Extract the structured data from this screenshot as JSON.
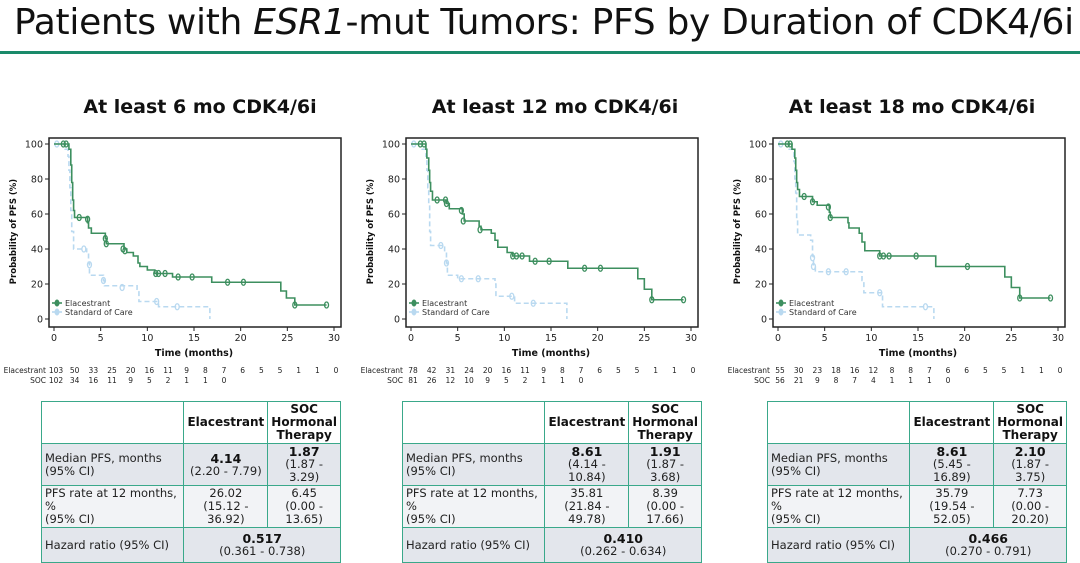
{
  "slide": {
    "title_pre": "Patients with ",
    "title_italic": "ESR1",
    "title_post": "-mut Tumors: PFS by Duration of CDK4/6i",
    "rule_color": "#1a8a6a"
  },
  "chart_data": [
    {
      "type": "line",
      "subtype": "kaplan-meier",
      "title": "At least 6 mo CDK4/6i",
      "xlabel": "Time (months)",
      "ylabel": "Probability of PFS (%)",
      "xlim": [
        0,
        30
      ],
      "ylim": [
        0,
        100
      ],
      "xticks": [
        0,
        5,
        10,
        15,
        20,
        25,
        30
      ],
      "yticks": [
        0,
        20,
        40,
        60,
        80,
        100
      ],
      "grid": false,
      "legend": "bottom-left",
      "series": [
        {
          "name": "Elacestrant",
          "color": "#3d8f5f",
          "style": "solid",
          "steps": [
            [
              0,
              100
            ],
            [
              1.6,
              97
            ],
            [
              1.8,
              88
            ],
            [
              1.9,
              78
            ],
            [
              2.0,
              68
            ],
            [
              2.1,
              62
            ],
            [
              2.2,
              58
            ],
            [
              3.6,
              55
            ],
            [
              3.7,
              52
            ],
            [
              4.0,
              49
            ],
            [
              5.5,
              46
            ],
            [
              5.6,
              43
            ],
            [
              7.5,
              40
            ],
            [
              7.8,
              38
            ],
            [
              8.5,
              36
            ],
            [
              9.0,
              32
            ],
            [
              9.2,
              30
            ],
            [
              10,
              28
            ],
            [
              10.8,
              26
            ],
            [
              12.7,
              24
            ],
            [
              16.9,
              21
            ],
            [
              24.3,
              16
            ],
            [
              24.9,
              12
            ],
            [
              25.8,
              8
            ],
            [
              29.2,
              8
            ]
          ],
          "censored": [
            [
              1.0,
              100
            ],
            [
              1.3,
              100
            ],
            [
              2.7,
              58
            ],
            [
              3.6,
              57
            ],
            [
              5.5,
              46
            ],
            [
              5.6,
              43
            ],
            [
              7.4,
              40
            ],
            [
              7.6,
              39
            ],
            [
              10.9,
              26
            ],
            [
              11.2,
              26
            ],
            [
              11.9,
              26
            ],
            [
              13.3,
              24
            ],
            [
              14.8,
              24
            ],
            [
              18.6,
              21
            ],
            [
              20.3,
              21
            ],
            [
              25.8,
              8
            ],
            [
              29.2,
              8
            ]
          ]
        },
        {
          "name": "Standard of Care",
          "color": "#b9d9f0",
          "style": "dashed",
          "steps": [
            [
              0,
              100
            ],
            [
              1.2,
              97
            ],
            [
              1.5,
              93
            ],
            [
              1.6,
              85
            ],
            [
              1.7,
              75
            ],
            [
              1.8,
              62
            ],
            [
              1.9,
              50
            ],
            [
              2.1,
              40
            ],
            [
              3.5,
              37
            ],
            [
              3.7,
              32
            ],
            [
              3.8,
              25
            ],
            [
              5.3,
              22
            ],
            [
              5.4,
              19
            ],
            [
              8.9,
              17
            ],
            [
              9.1,
              10
            ],
            [
              11.2,
              7
            ],
            [
              16.7,
              7
            ],
            [
              16.7,
              0
            ]
          ],
          "censored": [
            [
              0.3,
              100
            ],
            [
              3.2,
              40
            ],
            [
              3.8,
              31
            ],
            [
              5.3,
              22
            ],
            [
              7.3,
              18
            ],
            [
              11.0,
              10
            ],
            [
              13.2,
              7
            ]
          ]
        }
      ],
      "risk_times": [
        0,
        2,
        4,
        6,
        8,
        10,
        12,
        14,
        16,
        18,
        20,
        22,
        24,
        26,
        28,
        30
      ],
      "risk_table": [
        {
          "label": "Elacestrant",
          "values": [
            "103",
            "50",
            "33",
            "25",
            "20",
            "16",
            "11",
            "9",
            "8",
            "7",
            "6",
            "5",
            "5",
            "1",
            "1",
            "0"
          ]
        },
        {
          "label": "SOC",
          "values": [
            "102",
            "34",
            "16",
            "11",
            "9",
            "5",
            "2",
            "1",
            "1",
            "0"
          ]
        }
      ]
    },
    {
      "type": "line",
      "subtype": "kaplan-meier",
      "title": "At least 12 mo CDK4/6i",
      "xlabel": "Time (months)",
      "ylabel": "Probability of PFS (%)",
      "xlim": [
        0,
        30
      ],
      "ylim": [
        0,
        100
      ],
      "xticks": [
        0,
        5,
        10,
        15,
        20,
        25,
        30
      ],
      "yticks": [
        0,
        20,
        40,
        60,
        80,
        100
      ],
      "grid": false,
      "legend": "bottom-left",
      "series": [
        {
          "name": "Elacestrant",
          "color": "#3d8f5f",
          "style": "solid",
          "steps": [
            [
              0,
              100
            ],
            [
              1.6,
              97
            ],
            [
              1.7,
              92
            ],
            [
              1.9,
              85
            ],
            [
              2.0,
              78
            ],
            [
              2.1,
              73
            ],
            [
              2.3,
              68
            ],
            [
              3.8,
              66
            ],
            [
              4.1,
              63
            ],
            [
              5.5,
              60
            ],
            [
              5.7,
              56
            ],
            [
              7.3,
              53
            ],
            [
              7.5,
              51
            ],
            [
              8.6,
              49
            ],
            [
              9.0,
              45
            ],
            [
              9.3,
              41
            ],
            [
              10.3,
              38
            ],
            [
              10.9,
              36
            ],
            [
              12.7,
              33
            ],
            [
              16.8,
              29
            ],
            [
              24.3,
              23
            ],
            [
              25.0,
              17
            ],
            [
              25.8,
              11
            ],
            [
              29.2,
              11
            ]
          ],
          "censored": [
            [
              1.0,
              100
            ],
            [
              1.4,
              100
            ],
            [
              2.8,
              68
            ],
            [
              3.7,
              68
            ],
            [
              3.8,
              66
            ],
            [
              5.4,
              62
            ],
            [
              5.6,
              56
            ],
            [
              7.4,
              51
            ],
            [
              10.9,
              36
            ],
            [
              11.3,
              36
            ],
            [
              11.9,
              36
            ],
            [
              13.3,
              33
            ],
            [
              14.8,
              33
            ],
            [
              18.6,
              29
            ],
            [
              20.3,
              29
            ],
            [
              25.8,
              11
            ],
            [
              29.2,
              11
            ]
          ]
        },
        {
          "name": "Standard of Care",
          "color": "#b9d9f0",
          "style": "dashed",
          "steps": [
            [
              0,
              100
            ],
            [
              1.2,
              97
            ],
            [
              1.6,
              93
            ],
            [
              1.7,
              85
            ],
            [
              1.8,
              75
            ],
            [
              1.9,
              65
            ],
            [
              2.0,
              50
            ],
            [
              2.1,
              42
            ],
            [
              3.6,
              38
            ],
            [
              3.8,
              32
            ],
            [
              3.9,
              25
            ],
            [
              5.0,
              23
            ],
            [
              9.0,
              20
            ],
            [
              9.1,
              13
            ],
            [
              11.1,
              9
            ],
            [
              16.7,
              9
            ],
            [
              16.7,
              0
            ]
          ],
          "censored": [
            [
              0.3,
              100
            ],
            [
              3.2,
              42
            ],
            [
              3.8,
              32
            ],
            [
              5.4,
              23
            ],
            [
              7.2,
              23
            ],
            [
              10.8,
              13
            ],
            [
              13.1,
              9
            ]
          ]
        }
      ],
      "risk_times": [
        0,
        2,
        4,
        6,
        8,
        10,
        12,
        14,
        16,
        18,
        20,
        22,
        24,
        26,
        28,
        30
      ],
      "risk_table": [
        {
          "label": "Elacestrant",
          "values": [
            "78",
            "42",
            "31",
            "24",
            "20",
            "16",
            "11",
            "9",
            "8",
            "7",
            "6",
            "5",
            "5",
            "1",
            "1",
            "0"
          ]
        },
        {
          "label": "SOC",
          "values": [
            "81",
            "26",
            "12",
            "10",
            "9",
            "5",
            "2",
            "1",
            "1",
            "0"
          ]
        }
      ]
    },
    {
      "type": "line",
      "subtype": "kaplan-meier",
      "title": "At least 18 mo CDK4/6i",
      "xlabel": "Time (months)",
      "ylabel": "Probability of PFS (%)",
      "xlim": [
        0,
        30
      ],
      "ylim": [
        0,
        100
      ],
      "xticks": [
        0,
        5,
        10,
        15,
        20,
        25,
        30
      ],
      "yticks": [
        0,
        20,
        40,
        60,
        80,
        100
      ],
      "grid": false,
      "legend": "bottom-left",
      "series": [
        {
          "name": "Elacestrant",
          "color": "#3d8f5f",
          "style": "solid",
          "steps": [
            [
              0,
              100
            ],
            [
              1.5,
              97
            ],
            [
              1.8,
              92
            ],
            [
              1.9,
              85
            ],
            [
              2.0,
              78
            ],
            [
              2.1,
              74
            ],
            [
              2.3,
              70
            ],
            [
              3.7,
              67
            ],
            [
              4.2,
              65
            ],
            [
              5.5,
              61
            ],
            [
              5.6,
              58
            ],
            [
              7.5,
              55
            ],
            [
              7.6,
              52
            ],
            [
              8.7,
              49
            ],
            [
              9.0,
              44
            ],
            [
              9.3,
              39
            ],
            [
              10.9,
              36
            ],
            [
              16.9,
              30
            ],
            [
              24.3,
              24
            ],
            [
              25.0,
              18
            ],
            [
              25.9,
              12
            ],
            [
              29.2,
              12
            ]
          ],
          "censored": [
            [
              1.0,
              100
            ],
            [
              1.3,
              100
            ],
            [
              2.8,
              70
            ],
            [
              3.7,
              67
            ],
            [
              5.4,
              64
            ],
            [
              5.6,
              58
            ],
            [
              10.9,
              36
            ],
            [
              11.3,
              36
            ],
            [
              11.9,
              36
            ],
            [
              14.8,
              36
            ],
            [
              20.3,
              30
            ],
            [
              25.9,
              12
            ],
            [
              29.2,
              12
            ]
          ]
        },
        {
          "name": "Standard of Care",
          "color": "#b9d9f0",
          "style": "dashed",
          "steps": [
            [
              0,
              100
            ],
            [
              1.2,
              97
            ],
            [
              1.7,
              90
            ],
            [
              1.8,
              80
            ],
            [
              1.9,
              72
            ],
            [
              2.0,
              58
            ],
            [
              2.1,
              48
            ],
            [
              3.5,
              45
            ],
            [
              3.7,
              36
            ],
            [
              3.8,
              30
            ],
            [
              4.0,
              27
            ],
            [
              9.0,
              22
            ],
            [
              9.2,
              15
            ],
            [
              11.2,
              7
            ],
            [
              16.7,
              7
            ],
            [
              16.7,
              0
            ]
          ],
          "censored": [
            [
              0.3,
              100
            ],
            [
              3.7,
              35
            ],
            [
              3.8,
              30
            ],
            [
              5.4,
              27
            ],
            [
              7.3,
              27
            ],
            [
              10.9,
              15
            ],
            [
              15.8,
              7
            ]
          ]
        }
      ],
      "risk_times": [
        0,
        2,
        4,
        6,
        8,
        10,
        12,
        14,
        16,
        18,
        20,
        22,
        24,
        26,
        28,
        30
      ],
      "risk_table": [
        {
          "label": "Elacestrant",
          "values": [
            "55",
            "30",
            "23",
            "18",
            "16",
            "12",
            "8",
            "8",
            "7",
            "6",
            "6",
            "5",
            "5",
            "1",
            "1",
            "0"
          ]
        },
        {
          "label": "SOC",
          "values": [
            "56",
            "21",
            "9",
            "8",
            "7",
            "4",
            "1",
            "1",
            "1",
            "0"
          ]
        }
      ]
    }
  ],
  "tables": [
    {
      "col1": "Elacestrant",
      "col2_l1": "SOC",
      "col2_l2": "Hormonal",
      "col2_l3": "Therapy",
      "median_label_1": "Median PFS, months",
      "median_label_2": "(95% CI)",
      "median_e": "4.14",
      "median_e_ci": "(2.20 - 7.79)",
      "median_s": "1.87",
      "median_s_ci": "(1.87 - 3.29)",
      "rate_label_1": "PFS rate at 12 months, %",
      "rate_label_2": "(95% CI)",
      "rate_e": "26.02",
      "rate_e_ci": "(15.12 - 36.92)",
      "rate_s": "6.45",
      "rate_s_ci": "(0.00 - 13.65)",
      "hr_label": "Hazard ratio (95% CI)",
      "hr": "0.517",
      "hr_ci": "(0.361 - 0.738)"
    },
    {
      "col1": "Elacestrant",
      "col2_l1": "SOC",
      "col2_l2": "Hormonal",
      "col2_l3": "Therapy",
      "median_label_1": "Median PFS, months",
      "median_label_2": "(95% CI)",
      "median_e": "8.61",
      "median_e_ci": "(4.14 - 10.84)",
      "median_s": "1.91",
      "median_s_ci": "(1.87 - 3.68)",
      "rate_label_1": "PFS rate at 12 months, %",
      "rate_label_2": "(95% CI)",
      "rate_e": "35.81",
      "rate_e_ci": "(21.84 - 49.78)",
      "rate_s": "8.39",
      "rate_s_ci": "(0.00 - 17.66)",
      "hr_label": "Hazard ratio (95% CI)",
      "hr": "0.410",
      "hr_ci": "(0.262 - 0.634)"
    },
    {
      "col1": "Elacestrant",
      "col2_l1": "SOC",
      "col2_l2": "Hormonal",
      "col2_l3": "Therapy",
      "median_label_1": "Median PFS, months",
      "median_label_2": "(95% CI)",
      "median_e": "8.61",
      "median_e_ci": "(5.45 - 16.89)",
      "median_s": "2.10",
      "median_s_ci": "(1.87 - 3.75)",
      "rate_label_1": "PFS rate at 12 months, %",
      "rate_label_2": "(95% CI)",
      "rate_e": "35.79",
      "rate_e_ci": "(19.54 - 52.05)",
      "rate_s": "7.73",
      "rate_s_ci": "(0.00 - 20.20)",
      "hr_label": "Hazard ratio (95% CI)",
      "hr": "0.466",
      "hr_ci": "(0.270 - 0.791)"
    }
  ]
}
